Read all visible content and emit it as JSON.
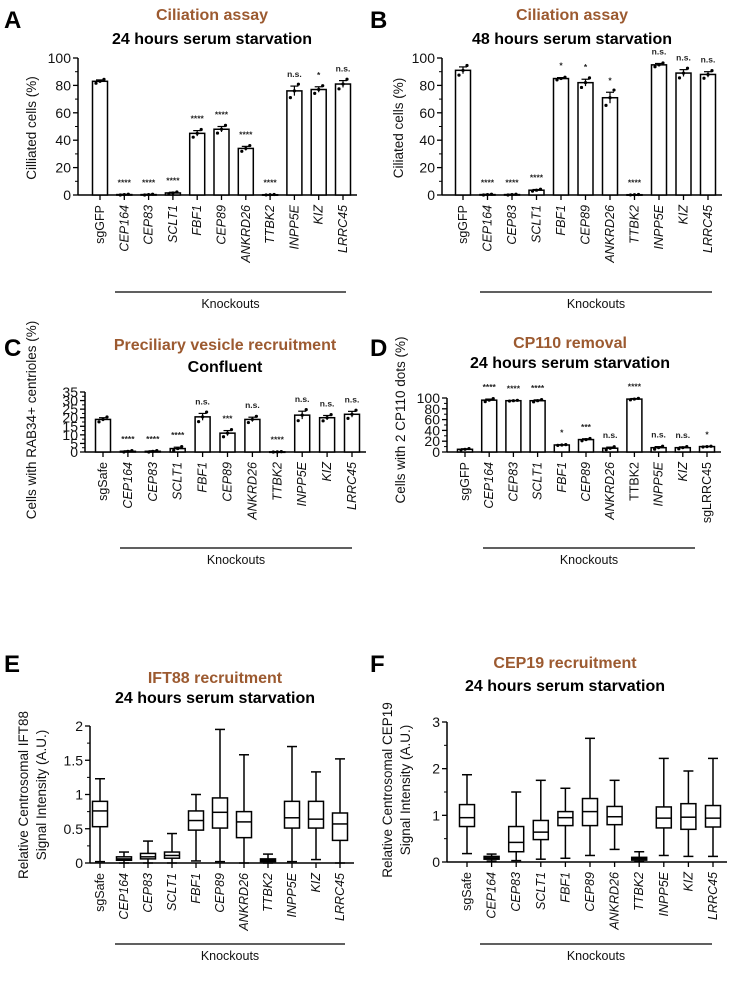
{
  "colors": {
    "title_accent": "#9c5a30",
    "ink": "#000000",
    "bar_fill": "#ffffff"
  },
  "chart_data": [
    {
      "panel": "A",
      "type": "bar",
      "title": "Ciliation assay",
      "subtitle": "24 hours serum starvation",
      "ylabel": "Cilliated cells (%)",
      "ylim": [
        0,
        100
      ],
      "yticks": [
        0,
        20,
        40,
        60,
        80,
        100
      ],
      "group_label": "Knockouts",
      "categories": [
        "sgGFP",
        "CEP164",
        "CEP83",
        "SCLT1",
        "FBF1",
        "CEP89",
        "ANKRD26",
        "TTBK2",
        "INPP5E",
        "KIZ",
        "LRRC45"
      ],
      "italic": [
        false,
        true,
        true,
        true,
        true,
        true,
        true,
        true,
        true,
        true,
        true
      ],
      "values": [
        83,
        0.3,
        0.3,
        1.5,
        45,
        48,
        34,
        0.2,
        76,
        77,
        81
      ],
      "sem": [
        1,
        0.2,
        0.2,
        0.5,
        2,
        2,
        1.5,
        0.1,
        3.5,
        2,
        2.5
      ],
      "significance": [
        "",
        "****",
        "****",
        "****",
        "****",
        "****",
        "****",
        "****",
        "n.s.",
        "*",
        "n.s."
      ]
    },
    {
      "panel": "B",
      "type": "bar",
      "title": "Ciliation assay",
      "subtitle": "48 hours serum starvation",
      "ylabel": "Ciliated cells (%)",
      "ylim": [
        0,
        100
      ],
      "yticks": [
        0,
        20,
        40,
        60,
        80,
        100
      ],
      "group_label": "Knockouts",
      "categories": [
        "sgGFP",
        "CEP164",
        "CEP83",
        "SCLT1",
        "FBF1",
        "CEP89",
        "ANKRD26",
        "TTBK2",
        "INPP5E",
        "KIZ",
        "LRRC45"
      ],
      "italic": [
        false,
        true,
        true,
        true,
        true,
        true,
        true,
        true,
        true,
        true,
        true
      ],
      "values": [
        91,
        0.3,
        0.3,
        3.5,
        85,
        82,
        71,
        0.2,
        95,
        89,
        88
      ],
      "sem": [
        2.5,
        0.2,
        0.2,
        0.5,
        0.7,
        2.5,
        4,
        0.1,
        1,
        2.5,
        2
      ],
      "significance": [
        "",
        "****",
        "****",
        "****",
        "*",
        "*",
        "*",
        "****",
        "n.s.",
        "n.s.",
        "n.s."
      ]
    },
    {
      "panel": "C",
      "type": "bar",
      "title": "Preciliary vesicle recruitment",
      "subtitle": "Confluent",
      "ylabel": "Cells with RAB34+ centrioles (%)",
      "ylim": [
        0,
        35
      ],
      "yticks": [
        0,
        5,
        10,
        15,
        20,
        25,
        30,
        35
      ],
      "group_label": "Knockouts",
      "categories": [
        "sgSafe",
        "CEP164",
        "CEP83",
        "SCLT1",
        "FBF1",
        "CEP89",
        "ANKRD26",
        "TTBK2",
        "INPP5E",
        "KIZ",
        "LRRC45"
      ],
      "italic": [
        false,
        true,
        true,
        true,
        true,
        true,
        true,
        true,
        true,
        true,
        true
      ],
      "values": [
        19,
        0.4,
        0.4,
        2,
        20.5,
        11,
        19,
        0.1,
        21.5,
        20,
        22
      ],
      "sem": [
        1,
        0.3,
        0.3,
        0.8,
        2,
        1.5,
        1.3,
        0.1,
        2.3,
        1.3,
        1.7
      ],
      "significance": [
        "",
        "****",
        "****",
        "****",
        "n.s.",
        "***",
        "n.s.",
        "****",
        "n.s.",
        "n.s.",
        "n.s."
      ]
    },
    {
      "panel": "D",
      "type": "bar",
      "title": "CP110 removal",
      "subtitle": "24 hours serum starvation",
      "ylabel": "Cells with 2 CP110 dots (%)",
      "ylim": [
        0,
        100
      ],
      "yticks": [
        0,
        20,
        40,
        60,
        80,
        100
      ],
      "group_label": "Knockouts",
      "categories": [
        "sgGFP",
        "CEP164",
        "CEP83",
        "SCLT1",
        "FBF1",
        "CEP89",
        "ANKRD26",
        "TTBK2",
        "INPP5E",
        "KIZ",
        "sgLRRC45"
      ],
      "italic": [
        false,
        true,
        true,
        true,
        true,
        true,
        true,
        false,
        true,
        true,
        false
      ],
      "values": [
        5,
        96,
        95,
        95,
        13,
        23,
        7,
        98,
        8,
        8,
        10
      ],
      "sem": [
        1,
        2,
        0.5,
        1.5,
        0.5,
        1.5,
        2,
        1,
        2,
        1.5,
        0.5
      ],
      "significance": [
        "",
        "****",
        "****",
        "****",
        "*",
        "***",
        "n.s.",
        "****",
        "n.s.",
        "n.s.",
        "*"
      ]
    },
    {
      "panel": "E",
      "type": "box",
      "title": "IFT88 recruitment",
      "subtitle": "24 hours serum starvation",
      "ylabel": [
        "Relative Centrosomal IFT88",
        "Signal Intensity (A.U.)"
      ],
      "ylim": [
        0,
        2
      ],
      "yticks": [
        0,
        0.5,
        1,
        1.5,
        2
      ],
      "ytick_labels": [
        "0",
        "0.5",
        "1",
        "1.5",
        "2"
      ],
      "group_label": "Knockouts",
      "categories": [
        "sgSafe",
        "CEP164",
        "CEP83",
        "SCLT1",
        "FBF1",
        "CEP89",
        "ANKRD26",
        "TTBK2",
        "INPP5E",
        "KIZ",
        "LRRC45"
      ],
      "italic": [
        false,
        true,
        true,
        true,
        true,
        true,
        true,
        true,
        true,
        true,
        true
      ],
      "boxes": [
        [
          0.02,
          0.53,
          0.76,
          0.9,
          1.23
        ],
        [
          0.0,
          0.04,
          0.06,
          0.09,
          0.16
        ],
        [
          0.0,
          0.06,
          0.09,
          0.14,
          0.32
        ],
        [
          0.0,
          0.07,
          0.11,
          0.16,
          0.43
        ],
        [
          0.03,
          0.48,
          0.62,
          0.76,
          1.0
        ],
        [
          0.02,
          0.51,
          0.74,
          0.95,
          1.95
        ],
        [
          0.0,
          0.37,
          0.6,
          0.75,
          1.58
        ],
        [
          0.0,
          0.02,
          0.04,
          0.06,
          0.13
        ],
        [
          0.02,
          0.51,
          0.66,
          0.9,
          1.7
        ],
        [
          0.05,
          0.51,
          0.64,
          0.9,
          1.33
        ],
        [
          0.0,
          0.33,
          0.57,
          0.73,
          1.52
        ]
      ]
    },
    {
      "panel": "F",
      "type": "box",
      "title": "CEP19 recruitment",
      "subtitle": "24 hours serum starvation",
      "ylabel": [
        "Relative Centrosomal CEP19",
        "Signal Intensity (A.U.)"
      ],
      "ylim": [
        0,
        3
      ],
      "yticks": [
        0,
        1,
        2,
        3
      ],
      "ytick_labels": [
        "0",
        "1",
        "2",
        "3"
      ],
      "group_label": "Knockouts",
      "categories": [
        "sgSafe",
        "CEP164",
        "CEP83",
        "SCLT1",
        "FBF1",
        "CEP89",
        "ANKRD26",
        "TTBK2",
        "INPP5E",
        "KIZ",
        "LRRC45"
      ],
      "italic": [
        false,
        true,
        true,
        true,
        true,
        true,
        true,
        true,
        true,
        true,
        true
      ],
      "boxes": [
        [
          0.18,
          0.76,
          0.95,
          1.23,
          1.87
        ],
        [
          0.02,
          0.06,
          0.09,
          0.12,
          0.17
        ],
        [
          0.03,
          0.22,
          0.42,
          0.76,
          1.5
        ],
        [
          0.06,
          0.48,
          0.64,
          0.89,
          1.75
        ],
        [
          0.08,
          0.78,
          0.95,
          1.08,
          1.58
        ],
        [
          0.14,
          0.78,
          1.08,
          1.36,
          2.65
        ],
        [
          0.27,
          0.8,
          0.97,
          1.19,
          1.75
        ],
        [
          0.01,
          0.04,
          0.07,
          0.1,
          0.22
        ],
        [
          0.14,
          0.73,
          0.94,
          1.18,
          2.22
        ],
        [
          0.12,
          0.7,
          0.96,
          1.25,
          1.95
        ],
        [
          0.12,
          0.75,
          0.94,
          1.21,
          2.22
        ]
      ]
    }
  ]
}
